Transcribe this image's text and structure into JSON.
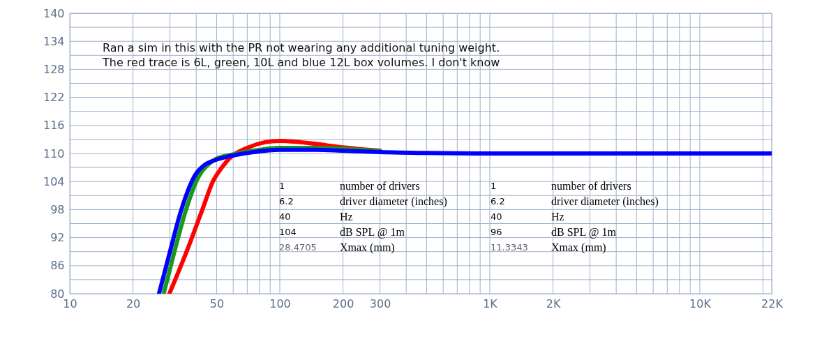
{
  "chart_data": {
    "type": "line",
    "xlim": [
      10,
      22000
    ],
    "ylim": [
      80,
      140
    ],
    "log": "x",
    "grid": true,
    "marker": "none",
    "line_style": "solid",
    "xticks": [
      10,
      20,
      {
        "value": 30,
        "label": null
      },
      {
        "value": 40,
        "label": null
      },
      50,
      {
        "value": 60,
        "label": null
      },
      {
        "value": 70,
        "label": null
      },
      {
        "value": 80,
        "label": null
      },
      {
        "value": 90,
        "label": null
      },
      100,
      200,
      300,
      {
        "value": 400,
        "label": null
      },
      {
        "value": 500,
        "label": null
      },
      {
        "value": 600,
        "label": null
      },
      {
        "value": 700,
        "label": null
      },
      {
        "value": 800,
        "label": null
      },
      {
        "value": 900,
        "label": null
      },
      {
        "value": 1000,
        "label": "1K"
      },
      {
        "value": 2000,
        "label": "2K"
      },
      {
        "value": 3000,
        "label": null
      },
      {
        "value": 4000,
        "label": null
      },
      {
        "value": 5000,
        "label": null
      },
      {
        "value": 6000,
        "label": null
      },
      {
        "value": 7000,
        "label": null
      },
      {
        "value": 8000,
        "label": null
      },
      {
        "value": 9000,
        "label": null
      },
      {
        "value": 10000,
        "label": "10K"
      },
      {
        "value": 20000,
        "label": null
      },
      {
        "value": 22000,
        "label": "22K"
      }
    ],
    "yticks": [
      80,
      {
        "value": 83,
        "label": null
      },
      86,
      {
        "value": 89,
        "label": null
      },
      92,
      {
        "value": 95,
        "label": null
      },
      98,
      {
        "value": 101,
        "label": null
      },
      104,
      {
        "value": 107,
        "label": null
      },
      110,
      {
        "value": 113,
        "label": null
      },
      116,
      {
        "value": 119,
        "label": null
      },
      122,
      {
        "value": 125,
        "label": null
      },
      128,
      {
        "value": 131,
        "label": null
      },
      134,
      {
        "value": 137,
        "label": null
      },
      140
    ],
    "series": [
      {
        "color": "#ff0000",
        "x": [
          29.8,
          36,
          42.8,
          48,
          53,
          58,
          70,
          85,
          100,
          120,
          150,
          200,
          300
        ],
        "values": [
          80,
          89,
          98,
          104,
          107,
          109.1,
          111.2,
          112.4,
          112.7,
          112.5,
          112,
          111.3,
          110.6
        ]
      },
      {
        "color": "#1a9a1a",
        "x": [
          28,
          31.5,
          35.8,
          41,
          46,
          50,
          60,
          75,
          100,
          150,
          200,
          300
        ],
        "values": [
          80,
          89,
          98,
          105,
          107.8,
          108.9,
          109.8,
          110.6,
          111.2,
          111.2,
          111,
          110.5
        ]
      },
      {
        "color": "#0000ff",
        "x": [
          26.6,
          30,
          34,
          39.7,
          43.7,
          48.7,
          55,
          62,
          75,
          100,
          150,
          200,
          300,
          500,
          1000,
          3000,
          22000
        ],
        "values": [
          80,
          89,
          98,
          105.5,
          107.5,
          108.5,
          109.2,
          109.7,
          110.3,
          110.8,
          110.8,
          110.6,
          110.3,
          110.1,
          110,
          110,
          110
        ]
      }
    ],
    "annotations": [
      "Ran a sim in this with the PR not wearing any additional tuning weight.",
      "The red trace is 6L, green, 10L and blue 12L box volumes. I don't know",
      "1",
      "number of drivers",
      "6.2",
      "driver diameter (inches)",
      "40",
      "Hz",
      "104",
      "dB SPL @ 1m",
      "28.4705",
      "Xmax (mm)",
      "1",
      "number of drivers",
      "6.2",
      "driver diameter (inches)",
      "40",
      "Hz",
      "96",
      "dB SPL @ 1m",
      "11.3343",
      "Xmax (mm)"
    ]
  }
}
